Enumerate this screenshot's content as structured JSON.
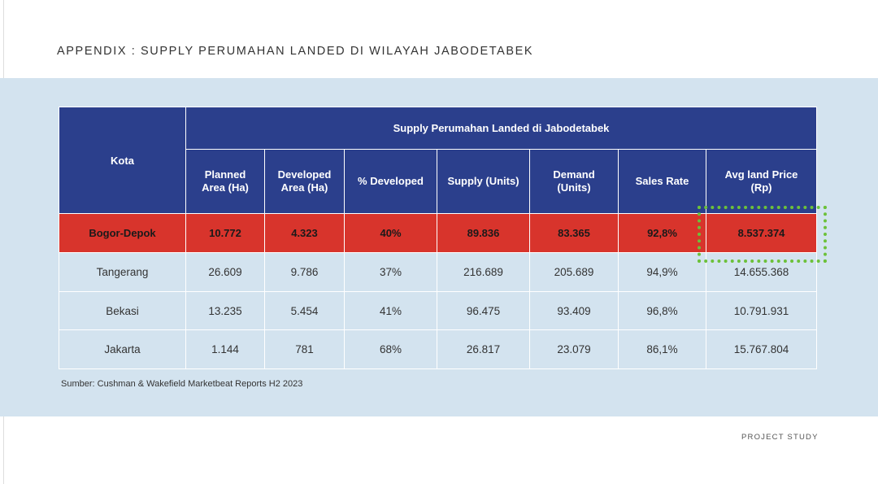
{
  "title": "APPENDIX : SUPPLY PERUMAHAN LANDED DI WILAYAH JABODETABEK",
  "table": {
    "group_header": "Supply Perumahan Landed di Jabodetabek",
    "columns": [
      "Kota",
      "Planned Area (Ha)",
      "Developed Area (Ha)",
      "% Developed",
      "Supply (Units)",
      "Demand (Units)",
      "Sales Rate",
      "Avg land Price (Rp)"
    ],
    "rows": [
      [
        "Bogor-Depok",
        "10.772",
        "4.323",
        "40%",
        "89.836",
        "83.365",
        "92,8%",
        "8.537.374"
      ],
      [
        "Tangerang",
        "26.609",
        "9.786",
        "37%",
        "216.689",
        "205.689",
        "94,9%",
        "14.655.368"
      ],
      [
        "Bekasi",
        "13.235",
        "5.454",
        "41%",
        "96.475",
        "93.409",
        "96,8%",
        "10.791.931"
      ],
      [
        "Jakarta",
        "1.144",
        "781",
        "68%",
        "26.817",
        "23.079",
        "86,1%",
        "15.767.804"
      ]
    ]
  },
  "source": "Sumber: Cushman & Wakefield Marketbeat Reports H2 2023",
  "footer": "PROJECT STUDY"
}
